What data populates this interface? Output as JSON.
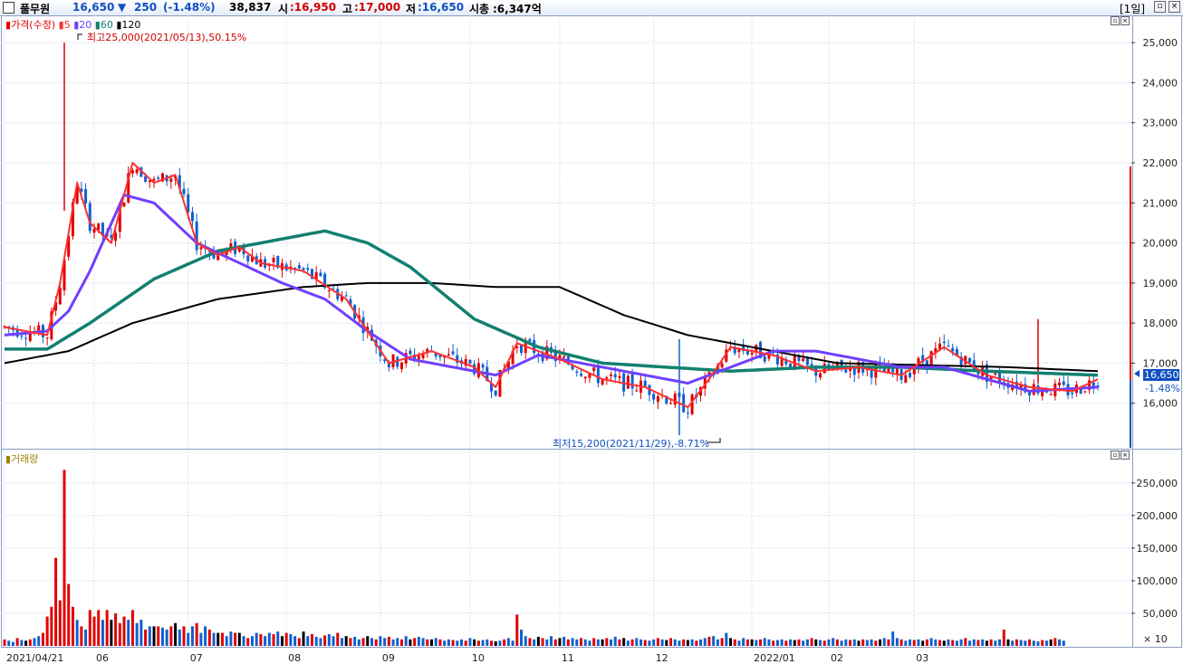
{
  "header": {
    "name": "풀무원",
    "price": "16,650",
    "change_arrow": "▼",
    "change": "250",
    "change_pct": "(-1.48%)",
    "volume": "38,837",
    "open_label": "시",
    "open": ":16,950",
    "high_label": "고",
    "high": ":17,000",
    "low_label": "저",
    "low": ":16,650",
    "mcap_label": "시총",
    "mcap": ":6,347억",
    "period": "[1일]"
  },
  "price_legend": {
    "price_label": "가격(수정)",
    "ma": [
      "5",
      "20",
      "60",
      "120"
    ]
  },
  "annotations": {
    "high": "최고25,000(2021/05/13),50.15%",
    "low": "최저15,200(2021/11/29),-8.71%"
  },
  "current": {
    "price": "16,650",
    "pct": "-1.48%"
  },
  "volume_legend": {
    "label": "거래량"
  },
  "volume_unit": "× 10",
  "colors": {
    "up": "#e00000",
    "down": "#1060d0",
    "ma5": "#ff3030",
    "ma20": "#7040ff",
    "ma60": "#128070",
    "ma120": "#000000"
  },
  "chart_data": [
    {
      "type": "candlestick",
      "title": "",
      "ylim": [
        15000,
        25500
      ],
      "y_ticks": [
        "25,000",
        "24,000",
        "23,000",
        "22,000",
        "21,000",
        "20,000",
        "19,000",
        "18,000",
        "17,000",
        "16,000"
      ],
      "x_ticks": [
        "2021/04/21",
        "06",
        "07",
        "08",
        "09",
        "10",
        "11",
        "12",
        "2022/01",
        "02",
        "03"
      ],
      "series": [
        {
          "name": "5",
          "x": [
            0,
            10,
            13,
            17,
            20,
            25,
            30,
            35,
            40,
            45,
            50,
            55,
            60,
            70,
            80,
            90,
            100,
            110,
            115,
            120,
            130,
            140,
            150,
            160,
            165,
            170,
            180,
            190,
            200,
            210,
            220,
            230,
            240,
            250,
            256
          ],
          "values": [
            17900,
            17700,
            19000,
            21500,
            20500,
            20000,
            22000,
            21500,
            21700,
            20000,
            19700,
            19900,
            19500,
            19300,
            18600,
            17000,
            17300,
            16900,
            16400,
            17500,
            17100,
            16600,
            16400,
            15900,
            16600,
            17400,
            17200,
            16800,
            16900,
            16700,
            17400,
            16700,
            16400,
            16300,
            16600
          ]
        },
        {
          "name": "20",
          "x": [
            0,
            10,
            15,
            20,
            28,
            35,
            45,
            55,
            65,
            75,
            85,
            95,
            105,
            115,
            125,
            140,
            160,
            170,
            180,
            190,
            200,
            210,
            220,
            230,
            240,
            256
          ],
          "values": [
            17700,
            17800,
            18300,
            19300,
            21200,
            21000,
            20000,
            19500,
            19000,
            18600,
            17800,
            17100,
            16900,
            16700,
            17200,
            16900,
            16500,
            16900,
            17300,
            17300,
            17100,
            16900,
            16900,
            16600,
            16300,
            16400
          ]
        },
        {
          "name": "60",
          "x": [
            0,
            10,
            20,
            35,
            50,
            65,
            75,
            85,
            95,
            110,
            125,
            140,
            155,
            170,
            190,
            210,
            230,
            256
          ],
          "values": [
            17350,
            17350,
            18000,
            19100,
            19800,
            20100,
            20300,
            20000,
            19400,
            18100,
            17400,
            17000,
            16900,
            16800,
            16900,
            16900,
            16800,
            16700
          ]
        },
        {
          "name": "120",
          "x": [
            0,
            15,
            30,
            50,
            70,
            85,
            100,
            115,
            130,
            145,
            160,
            175,
            195,
            215,
            235,
            256
          ],
          "values": [
            17000,
            17300,
            18000,
            18600,
            18900,
            19000,
            19000,
            18900,
            18900,
            18200,
            17700,
            17400,
            17000,
            16950,
            16900,
            16800
          ]
        }
      ]
    },
    {
      "type": "bar",
      "title": "",
      "ylim": [
        0,
        290000
      ],
      "y_ticks": [
        "250,000",
        "200,000",
        "150,000",
        "100,000",
        "50,000"
      ],
      "values": [
        10000,
        8000,
        6000,
        12000,
        9000,
        8000,
        10000,
        12000,
        15000,
        20000,
        45000,
        60000,
        135000,
        70000,
        270000,
        95000,
        60000,
        40000,
        30000,
        25000,
        55000,
        45000,
        55000,
        40000,
        55000,
        40000,
        50000,
        35000,
        45000,
        40000,
        55000,
        35000,
        40000,
        25000,
        30000,
        30000,
        30000,
        28000,
        25000,
        30000,
        35000,
        25000,
        30000,
        20000,
        30000,
        35000,
        20000,
        30000,
        25000,
        20000,
        20000,
        20000,
        15000,
        22000,
        20000,
        20000,
        15000,
        12000,
        15000,
        20000,
        18000,
        15000,
        20000,
        18000,
        22000,
        15000,
        20000,
        18000,
        15000,
        12000,
        22000,
        15000,
        18000,
        14000,
        12000,
        16000,
        18000,
        15000,
        20000,
        12000,
        15000,
        12000,
        14000,
        10000,
        12000,
        15000,
        12000,
        10000,
        15000,
        12000,
        14000,
        10000,
        12000,
        10000,
        15000,
        10000,
        12000,
        14000,
        12000,
        10000,
        10000,
        12000,
        10000,
        8000,
        10000,
        9000,
        8000,
        10000,
        8000,
        12000,
        10000,
        8000,
        9000,
        10000,
        8000,
        7000,
        8000,
        10000,
        12000,
        8000,
        48000,
        25000,
        15000,
        12000,
        10000,
        14000,
        12000,
        10000,
        15000,
        10000,
        12000,
        14000,
        10000,
        12000,
        10000,
        12000,
        10000,
        8000,
        12000,
        10000,
        10000,
        12000,
        10000,
        14000,
        10000,
        12000,
        8000,
        10000,
        12000,
        10000,
        9000,
        8000,
        10000,
        12000,
        10000,
        9000,
        12000,
        10000,
        8000,
        10000,
        9000,
        10000,
        8000,
        10000,
        12000,
        14000,
        15000,
        10000,
        12000,
        20000,
        12000,
        10000,
        8000,
        12000,
        10000,
        10000,
        9000,
        10000,
        12000,
        10000,
        8000,
        9000,
        10000,
        8000,
        10000,
        9000,
        10000,
        8000,
        10000,
        12000,
        10000,
        9000,
        8000,
        10000,
        12000,
        10000,
        8000,
        10000,
        9000,
        10000,
        8000,
        10000,
        9000,
        10000,
        8000,
        10000,
        12000,
        10000,
        22000,
        12000,
        10000,
        8000,
        10000,
        9000,
        10000,
        8000,
        10000,
        12000,
        10000,
        9000,
        8000,
        10000,
        9000,
        8000,
        10000,
        12000,
        8000,
        10000,
        9000,
        10000,
        8000,
        10000,
        8000,
        10000,
        25000,
        10000,
        8000,
        10000,
        9000,
        8000,
        10000,
        8000,
        7000,
        9000,
        8000,
        10000,
        12000,
        10000,
        8000
      ]
    }
  ]
}
